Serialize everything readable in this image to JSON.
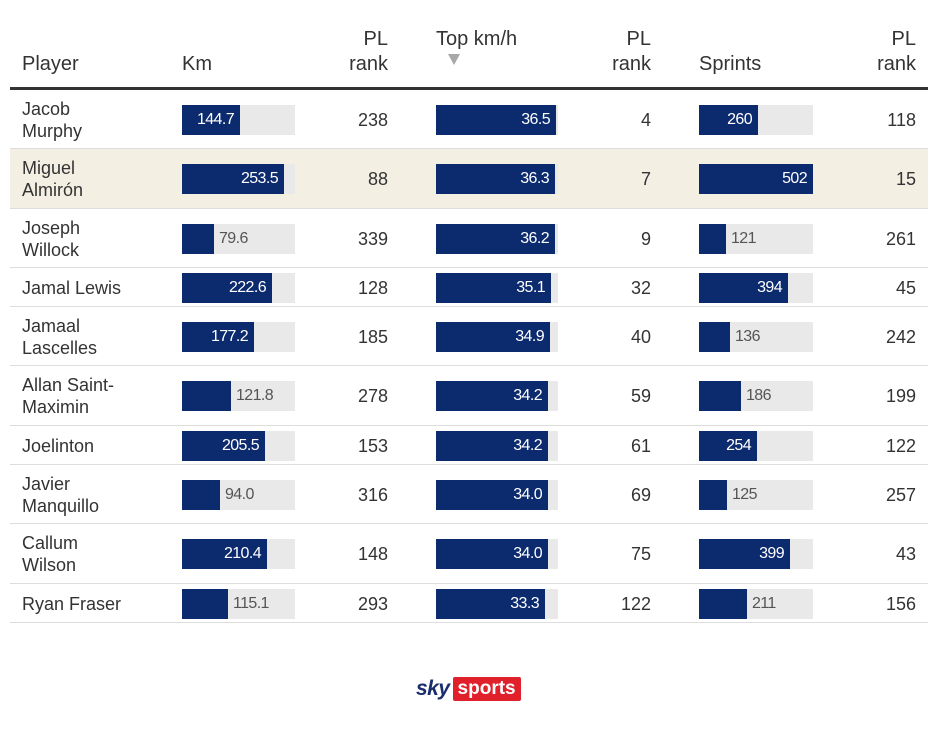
{
  "columns": {
    "player": "Player",
    "km": "Km",
    "km_rank": [
      "PL",
      "rank"
    ],
    "top_speed": "Top km/h",
    "top_speed_rank": [
      "PL",
      "rank"
    ],
    "sprints": "Sprints",
    "sprints_rank": [
      "PL",
      "rank"
    ]
  },
  "sorted_by": "Top km/h",
  "highlight_color": "#f3efe3",
  "bar_color": "#0c2a6e",
  "chart_data": {
    "type": "table",
    "rows": [
      {
        "player": [
          "Jacob",
          "Murphy"
        ],
        "km": "144.7",
        "km_rank": "238",
        "top": "36.5",
        "top_rank": "4",
        "sprints": "260",
        "sprints_rank": "118",
        "highlight": false
      },
      {
        "player": [
          "Miguel",
          "Almirón"
        ],
        "km": "253.5",
        "km_rank": "88",
        "top": "36.3",
        "top_rank": "7",
        "sprints": "502",
        "sprints_rank": "15",
        "highlight": true
      },
      {
        "player": [
          "Joseph",
          "Willock"
        ],
        "km": "79.6",
        "km_rank": "339",
        "top": "36.2",
        "top_rank": "9",
        "sprints": "121",
        "sprints_rank": "261",
        "highlight": false
      },
      {
        "player": [
          "Jamal Lewis"
        ],
        "km": "222.6",
        "km_rank": "128",
        "top": "35.1",
        "top_rank": "32",
        "sprints": "394",
        "sprints_rank": "45",
        "highlight": false
      },
      {
        "player": [
          "Jamaal",
          "Lascelles"
        ],
        "km": "177.2",
        "km_rank": "185",
        "top": "34.9",
        "top_rank": "40",
        "sprints": "136",
        "sprints_rank": "242",
        "highlight": false
      },
      {
        "player": [
          "Allan Saint-",
          "Maximin"
        ],
        "km": "121.8",
        "km_rank": "278",
        "top": "34.2",
        "top_rank": "59",
        "sprints": "186",
        "sprints_rank": "199",
        "highlight": false
      },
      {
        "player": [
          "Joelinton"
        ],
        "km": "205.5",
        "km_rank": "153",
        "top": "34.2",
        "top_rank": "61",
        "sprints": "254",
        "sprints_rank": "122",
        "highlight": false
      },
      {
        "player": [
          "Javier",
          "Manquillo"
        ],
        "km": "94.0",
        "km_rank": "316",
        "top": "34.0",
        "top_rank": "69",
        "sprints": "125",
        "sprints_rank": "257",
        "highlight": false
      },
      {
        "player": [
          "Callum",
          "Wilson"
        ],
        "km": "210.4",
        "km_rank": "148",
        "top": "34.0",
        "top_rank": "75",
        "sprints": "399",
        "sprints_rank": "43",
        "highlight": false
      },
      {
        "player": [
          "Ryan Fraser"
        ],
        "km": "115.1",
        "km_rank": "293",
        "top": "33.3",
        "top_rank": "122",
        "sprints": "211",
        "sprints_rank": "156",
        "highlight": false
      }
    ],
    "scales": {
      "km_max": 280,
      "top_max": 37.2,
      "sprints_max": 502
    }
  },
  "logo": {
    "sky": "sky",
    "sports": "sports"
  }
}
